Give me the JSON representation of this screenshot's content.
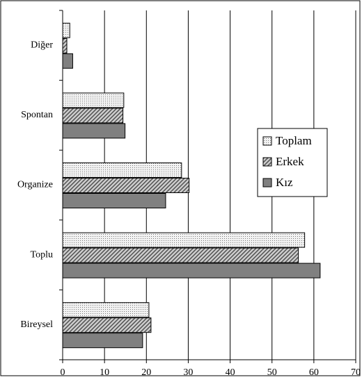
{
  "chart_data": {
    "type": "bar",
    "orientation": "horizontal",
    "categories": [
      "Diğer",
      "Spontan",
      "Organize",
      "Toplu",
      "Bireysel"
    ],
    "series": [
      {
        "name": "Toplam",
        "color": "#e6e6e6",
        "pattern": "dots",
        "values": [
          1.7,
          14.6,
          28.4,
          57.8,
          20.6
        ]
      },
      {
        "name": "Erkek",
        "color": "#a0a0a0",
        "pattern": "hatch",
        "values": [
          1.0,
          14.4,
          30.2,
          56.3,
          21.1
        ]
      },
      {
        "name": "Kız",
        "color": "#808080",
        "pattern": "solid",
        "values": [
          2.4,
          14.9,
          24.6,
          61.5,
          19.1
        ]
      }
    ],
    "xlim": [
      0,
      70
    ],
    "xticks": [
      0,
      10,
      20,
      30,
      40,
      50,
      60,
      70
    ],
    "grid": true,
    "legend": "right"
  }
}
